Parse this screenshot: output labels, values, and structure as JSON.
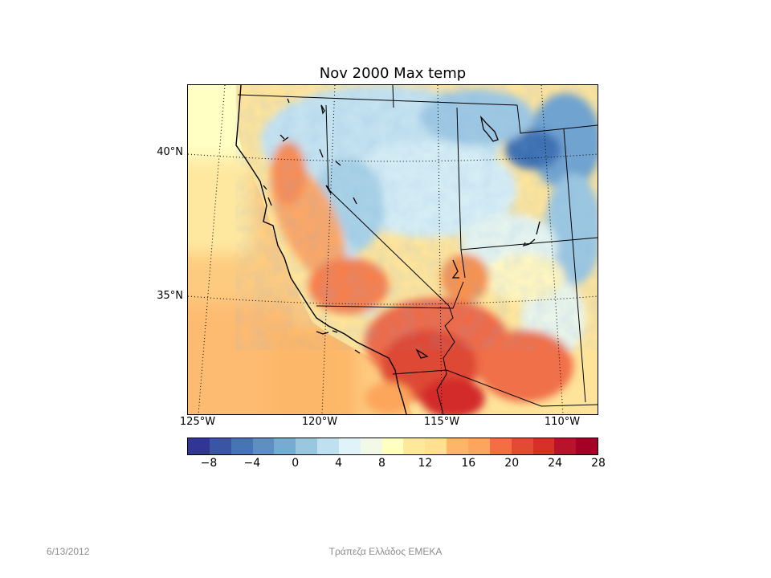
{
  "map": {
    "title": "Nov 2000 Max temp",
    "lat_labels": [
      {
        "text": "40°N",
        "value": 40
      },
      {
        "text": "35°N",
        "value": 35
      }
    ],
    "lon_labels": [
      {
        "text": "125°W",
        "value": -125
      },
      {
        "text": "120°W",
        "value": -120
      },
      {
        "text": "115°W",
        "value": -115
      },
      {
        "text": "110°W",
        "value": -110
      }
    ],
    "variable_colors": {
      "low": "#313695",
      "mid": "#ffffbf",
      "high": "#a50026"
    }
  },
  "colorbar": {
    "min": -10,
    "max": 28,
    "step": 2,
    "colors": [
      "#313695",
      "#3a55a4",
      "#4575b4",
      "#5f8fc2",
      "#74add1",
      "#99c7e0",
      "#bfe0ee",
      "#e0f3f8",
      "#f2f9e6",
      "#ffffbf",
      "#fee99a",
      "#fee090",
      "#fdb567",
      "#fca55d",
      "#f46d43",
      "#e34a33",
      "#d73027",
      "#b8132a",
      "#a50026"
    ],
    "tick_labels": [
      "−8",
      "−4",
      "0",
      "4",
      "8",
      "12",
      "16",
      "20",
      "24",
      "28"
    ],
    "tick_values": [
      -8,
      -4,
      0,
      4,
      8,
      12,
      16,
      20,
      24,
      28
    ]
  },
  "footer": {
    "date": "6/13/2012",
    "organization": "Τράπεζα Ελλάδος ΕΜΕΚΑ"
  }
}
